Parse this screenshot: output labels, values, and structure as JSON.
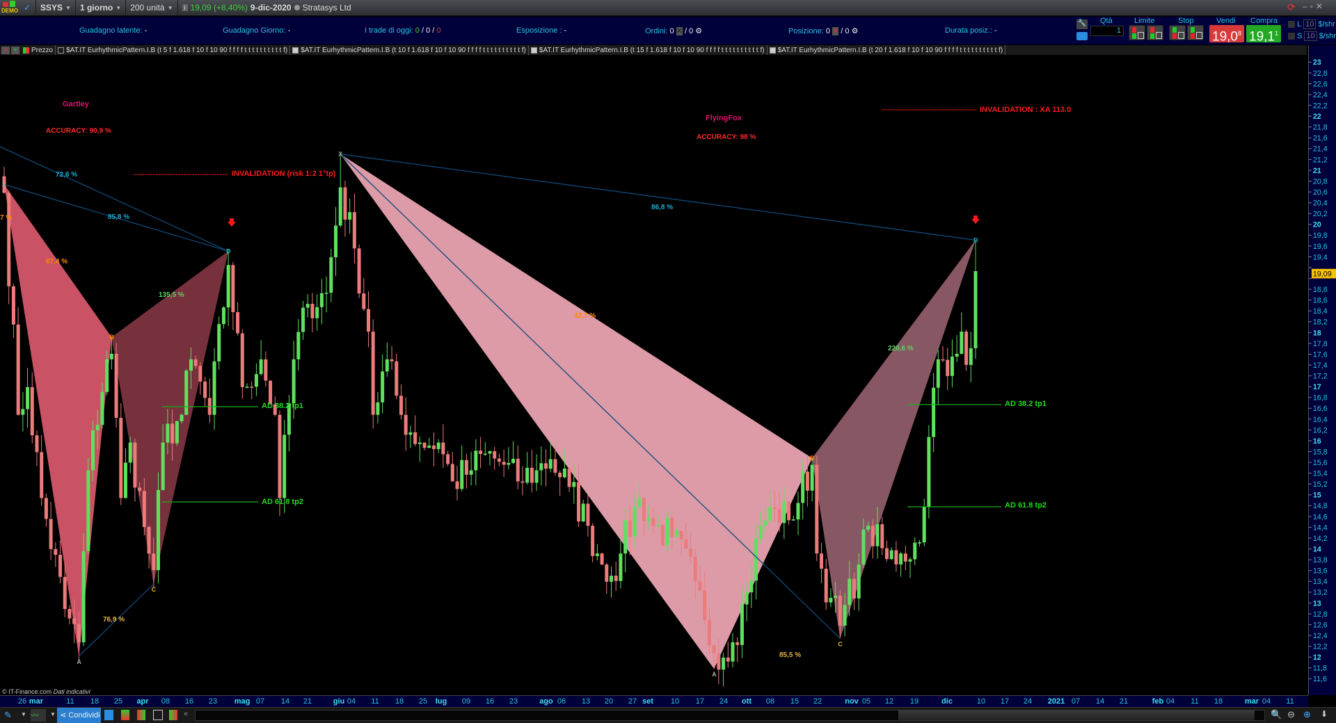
{
  "topbar": {
    "demo_label": "DEMO",
    "symbol": "SSYS",
    "timeframe": "1 giorno",
    "units": "200 unità",
    "last_price": "19,09 (+8,40%)",
    "date": "9-dic-2020",
    "company": "Stratasys Ltd"
  },
  "info": {
    "latent_label": "Guadagno latente:",
    "latent_value": "-",
    "day_label": "Guadagno Giorno:",
    "day_value": "-",
    "trades_label": "I trade di oggi:",
    "trades": [
      "0",
      "0",
      "0"
    ],
    "exposure_label": "Esposizione :",
    "exposure_value": "-",
    "orders_label": "Ordini:",
    "orders_value": "0",
    "orders_value2": "/ 0",
    "position_label": "Posizione:",
    "position_value": "0",
    "position_value2": "/ 0",
    "duration_label": "Durata posiz.:",
    "duration_value": "-"
  },
  "trade_panel": {
    "qty_label": "Qtà",
    "qty_value": "1",
    "limit_label": "Limite",
    "stop_label": "Stop",
    "sell_label": "Vendi",
    "sell_price": "19,0",
    "sell_sup": "8",
    "buy_label": "Compra",
    "buy_price": "19,1",
    "buy_sup": "1",
    "long_label": "L",
    "short_label": "S",
    "long_value": "10",
    "short_value": "10",
    "unit": "$/shr"
  },
  "legend": {
    "price_label": "Prezzo",
    "indicators": [
      "$AT.IT EurhythmicPattern.I.B (t 5 f 1.618 f 10 f 10 90 f f f f t t t t t t t t t t f)",
      "$AT.IT EurhythmicPattern.I.B (t 10 f 1.618 f 10 f 10 90 f f f f t t t t t t t t t t f)",
      "$AT.IT EurhythmicPattern.I.B (t 15 f 1.618 f 10 f 10 90 f f f f t t t t t t t t t t f)",
      "$AT.IT EurhythmicPattern.I.B (t 20 f 1.618 f 10 f 10 90 f f f f t t t t t t t t t t f)"
    ]
  },
  "colors": {
    "up": "#5fe05f",
    "down": "#ec7b7b",
    "axis_text": "#27c4e0",
    "panel_bg": "#00003a",
    "sell": "#d83a3a",
    "buy": "#22a822"
  },
  "chart_data": {
    "type": "candlestick",
    "price_axis": {
      "min": 11.6,
      "max": 23,
      "step": 0.2
    },
    "current_price": "19,09",
    "close_anchors": [
      [
        "2020-02-21",
        20.5
      ],
      [
        "2020-02-26",
        16.5
      ],
      [
        "2020-02-28",
        17
      ],
      [
        "2020-03-04",
        15
      ],
      [
        "2020-03-11",
        13
      ],
      [
        "2020-03-16",
        12.4
      ],
      [
        "2020-03-18",
        15.5
      ],
      [
        "2020-03-24",
        17.5
      ],
      [
        "2020-03-25",
        17.6
      ],
      [
        "2020-03-27",
        15
      ],
      [
        "2020-03-31",
        16
      ],
      [
        "2020-04-06",
        14
      ],
      [
        "2020-04-07",
        13.7
      ],
      [
        "2020-04-09",
        16
      ],
      [
        "2020-04-15",
        16.5
      ],
      [
        "2020-04-17",
        17.5
      ],
      [
        "2020-04-23",
        16.5
      ],
      [
        "2020-04-29",
        19.2
      ],
      [
        "2020-05-04",
        17
      ],
      [
        "2020-05-08",
        17.5
      ],
      [
        "2020-05-13",
        16.5
      ],
      [
        "2020-05-14",
        15
      ],
      [
        "2020-05-19",
        17.5
      ],
      [
        "2020-05-22",
        18.5
      ],
      [
        "2020-05-28",
        18.7
      ],
      [
        "2020-06-02",
        20.6
      ],
      [
        "2020-06-05",
        19.5
      ],
      [
        "2020-06-10",
        18
      ],
      [
        "2020-06-11",
        16.5
      ],
      [
        "2020-06-16",
        17.5
      ],
      [
        "2020-06-19",
        16.5
      ],
      [
        "2020-06-25",
        16
      ],
      [
        "2020-07-01",
        16
      ],
      [
        "2020-07-06",
        15.3
      ],
      [
        "2020-07-10",
        15.5
      ],
      [
        "2020-07-15",
        15.8
      ],
      [
        "2020-07-21",
        15.6
      ],
      [
        "2020-07-24",
        15.3
      ],
      [
        "2020-07-30",
        15.5
      ],
      [
        "2020-08-04",
        15.7
      ],
      [
        "2020-08-10",
        15.2
      ],
      [
        "2020-08-14",
        14.5
      ],
      [
        "2020-08-18",
        14
      ],
      [
        "2020-08-21",
        13.6
      ],
      [
        "2020-08-25",
        14
      ],
      [
        "2020-08-31",
        15
      ],
      [
        "2020-09-03",
        14.5
      ],
      [
        "2020-09-09",
        14.3
      ],
      [
        "2020-09-16",
        13.5
      ],
      [
        "2020-09-18",
        12.8
      ],
      [
        "2020-09-22",
        12.2
      ],
      [
        "2020-09-28",
        12.4
      ],
      [
        "2020-10-01",
        13.3
      ],
      [
        "2020-10-06",
        14.5
      ],
      [
        "2020-10-09",
        14.8
      ],
      [
        "2020-10-14",
        14.6
      ],
      [
        "2020-10-21",
        15.6
      ],
      [
        "2020-10-22",
        14
      ],
      [
        "2020-10-27",
        13.2
      ],
      [
        "2020-10-29",
        12.7
      ],
      [
        "2020-11-04",
        13.8
      ],
      [
        "2020-11-06",
        14.5
      ],
      [
        "2020-11-12",
        13.9
      ],
      [
        "2020-11-17",
        14
      ],
      [
        "2020-11-23",
        14.2
      ],
      [
        "2020-11-25",
        16.1
      ],
      [
        "2020-11-27",
        17.5
      ],
      [
        "2020-12-01",
        17.2
      ],
      [
        "2020-12-03",
        17.6
      ],
      [
        "2020-12-04",
        18
      ],
      [
        "2020-12-07",
        17.4
      ],
      [
        "2020-12-08",
        17.7
      ],
      [
        "2020-12-09",
        19.09
      ]
    ],
    "patterns": [
      {
        "name": "Gartley",
        "accuracy": "ACCURACY: 90,9 %",
        "invalidation": "INVALIDATION (risk 1:2 1°tp)",
        "tp1": "AD 38.2 tp1",
        "tp2": "AD 61.8 tp2",
        "points": [
          {
            "label": "X",
            "date": "2020-02-21",
            "price": 20.65
          },
          {
            "label": "A",
            "date": "2020-03-16",
            "price": 12.15
          },
          {
            "label": "B",
            "date": "2020-03-25",
            "price": 17.9
          },
          {
            "label": "C",
            "date": "2020-04-07",
            "price": 13.45
          },
          {
            "label": "D",
            "date": "2020-04-29",
            "price": 19.45
          }
        ],
        "ratios": {
          "xb_partial": "7 %",
          "xd_prev": "72,6 %",
          "xd": "85,8 %",
          "xab": "67,4 %",
          "bcd": "135,5 %",
          "ac": "76,9 %"
        }
      },
      {
        "name": "FlyingFox",
        "accuracy": "ACCURACY: 98 %",
        "invalidation": "INVALIDATION :  XA 113.0",
        "tp1": "AD 38.2 tp1",
        "tp2": "AD 61.8 tp2",
        "points": [
          {
            "label": "X",
            "date": "2020-06-02",
            "price": 21.2
          },
          {
            "label": "A",
            "date": "2020-09-22",
            "price": 11.92
          },
          {
            "label": "B",
            "date": "2020-10-21",
            "price": 15.72
          },
          {
            "label": "C",
            "date": "2020-10-29",
            "price": 12.47
          },
          {
            "label": "D",
            "date": "2020-12-09",
            "price": 19.65
          }
        ],
        "ratios": {
          "xd": "86,8 %",
          "xab": "42,7 %",
          "bcd": "220,6 %",
          "xc": "85,5 %"
        }
      }
    ],
    "x_labels": [
      {
        "t": "26"
      },
      {
        "t": "mar",
        "b": true
      },
      {
        "t": "11"
      },
      {
        "t": "18"
      },
      {
        "t": "25"
      },
      {
        "t": "apr",
        "b": true
      },
      {
        "t": "08"
      },
      {
        "t": "16"
      },
      {
        "t": "23"
      },
      {
        "t": "mag",
        "b": true
      },
      {
        "t": "07"
      },
      {
        "t": "14"
      },
      {
        "t": "21"
      },
      {
        "t": "giu",
        "b": true
      },
      {
        "t": "04"
      },
      {
        "t": "11"
      },
      {
        "t": "18"
      },
      {
        "t": "25"
      },
      {
        "t": "lug",
        "b": true
      },
      {
        "t": "09"
      },
      {
        "t": "16"
      },
      {
        "t": "23"
      },
      {
        "t": "ago",
        "b": true
      },
      {
        "t": "06"
      },
      {
        "t": "13"
      },
      {
        "t": "20"
      },
      {
        "t": "27"
      },
      {
        "t": "set",
        "b": true
      },
      {
        "t": "10"
      },
      {
        "t": "17"
      },
      {
        "t": "24"
      },
      {
        "t": "ott",
        "b": true
      },
      {
        "t": "08"
      },
      {
        "t": "15"
      },
      {
        "t": "22"
      },
      {
        "t": "nov",
        "b": true
      },
      {
        "t": "05"
      },
      {
        "t": "12"
      },
      {
        "t": "19"
      },
      {
        "t": "dic",
        "b": true
      },
      {
        "t": "10"
      },
      {
        "t": "17"
      },
      {
        "t": "24"
      },
      {
        "t": "2021",
        "b": true
      },
      {
        "t": "07"
      },
      {
        "t": "14"
      },
      {
        "t": "21"
      },
      {
        "t": "feb",
        "b": true
      },
      {
        "t": "04"
      },
      {
        "t": "11"
      },
      {
        "t": "18"
      },
      {
        "t": "mar",
        "b": true
      },
      {
        "t": "04"
      },
      {
        "t": "11"
      }
    ]
  },
  "footer": {
    "copyright": "© IT-Finance.com",
    "disclaimer": "Dati indicativi",
    "share_label": "Condividi"
  }
}
